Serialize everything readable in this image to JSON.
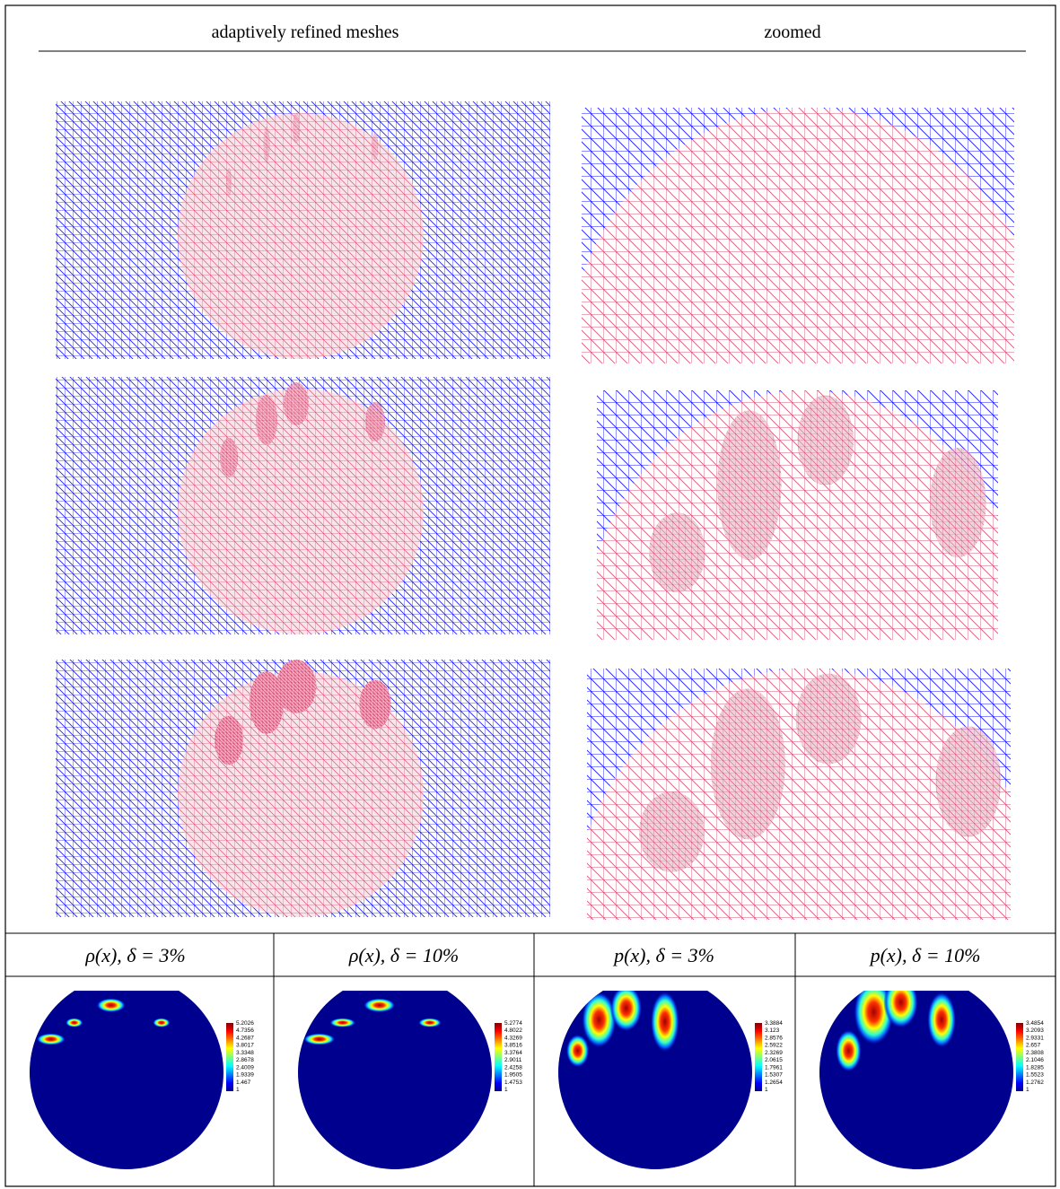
{
  "header": {
    "columns": [
      "adaptively refined meshes",
      "zoomed"
    ]
  },
  "table": {
    "headers": [
      "ρ(x), δ = 3%",
      "ρ(x), δ = 10%",
      "p(x), δ = 3%",
      "p(x), δ = 10%"
    ],
    "colorbars": [
      [
        5.2026,
        4.7356,
        4.2687,
        3.8017,
        3.3348,
        2.8678,
        2.4009,
        1.9339,
        1.467,
        1
      ],
      [
        5.2774,
        4.8022,
        4.3269,
        3.8516,
        3.3764,
        2.9011,
        2.4258,
        1.9505,
        1.4753,
        1
      ],
      [
        3.3884,
        3.123,
        2.8576,
        2.5922,
        2.3269,
        2.0615,
        1.7961,
        1.5307,
        1.2654,
        1
      ],
      [
        3.4854,
        3.2093,
        2.9331,
        2.657,
        2.3808,
        2.1046,
        1.8285,
        1.5523,
        1.2762,
        1
      ]
    ]
  }
}
